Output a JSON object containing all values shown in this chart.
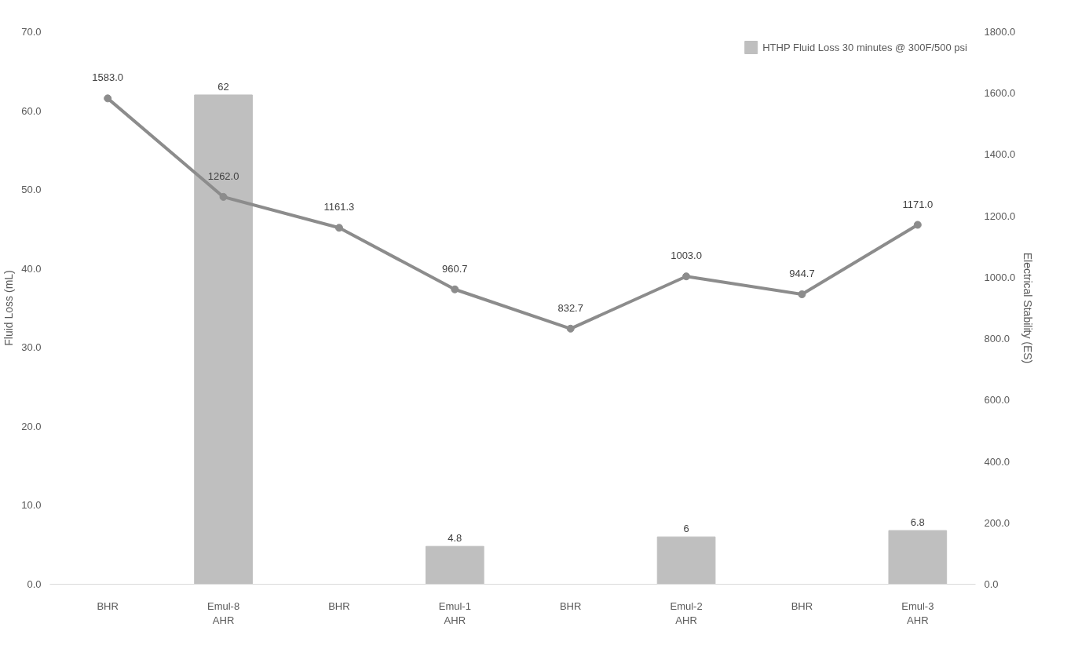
{
  "chart_data": {
    "type": "bar",
    "categories": [
      "BHR",
      "Emul-8\nAHR",
      "BHR",
      "Emul-1\nAHR",
      "BHR",
      "Emul-2\nAHR",
      "BHR",
      "Emul-3\nAHR"
    ],
    "ylabel": "Fluid Loss (mL)",
    "y2label": "Electrical Stability (ES)",
    "ylim": [
      0,
      70
    ],
    "yticks": [
      {
        "value": 0,
        "label": "0.0"
      },
      {
        "value": 10,
        "label": "10.0"
      },
      {
        "value": 20,
        "label": "20.0"
      },
      {
        "value": 30,
        "label": "30.0"
      },
      {
        "value": 40,
        "label": "40.0"
      },
      {
        "value": 50,
        "label": "50.0"
      },
      {
        "value": 60,
        "label": "60.0"
      },
      {
        "value": 70,
        "label": "70.0"
      }
    ],
    "y2lim": [
      0,
      1800
    ],
    "y2ticks": [
      {
        "value": 0,
        "label": "0.0"
      },
      {
        "value": 200,
        "label": "200.0"
      },
      {
        "value": 400,
        "label": "400.0"
      },
      {
        "value": 600,
        "label": "600.0"
      },
      {
        "value": 800,
        "label": "800.0"
      },
      {
        "value": 1000,
        "label": "1000.0"
      },
      {
        "value": 1200,
        "label": "1200.0"
      },
      {
        "value": 1400,
        "label": "1400.0"
      },
      {
        "value": 1600,
        "label": "1600.0"
      },
      {
        "value": 1800,
        "label": "1800.0"
      }
    ],
    "series": [
      {
        "name": "HTHP Fluid Loss 30 minutes @ 300F/500 psi",
        "color": "#bfbfbf",
        "values": [
          null,
          62,
          null,
          4.8,
          null,
          6,
          null,
          6.8
        ],
        "value_labels": [
          null,
          "62",
          null,
          "4.8",
          null,
          "6",
          null,
          "6.8"
        ]
      },
      {
        "type": "line",
        "axis": "y2",
        "color": "#8c8c8c",
        "marker": "circle",
        "line_style": "solid",
        "values": [
          1583,
          1262,
          1161.3,
          960.7,
          832.7,
          1003,
          944.7,
          1171
        ],
        "value_labels": [
          "1583.0",
          "1262.0",
          "1161.3",
          "960.7",
          "832.7",
          "1003.0",
          "944.7",
          "1171.0"
        ]
      }
    ],
    "grid": false,
    "legend": "top right"
  }
}
